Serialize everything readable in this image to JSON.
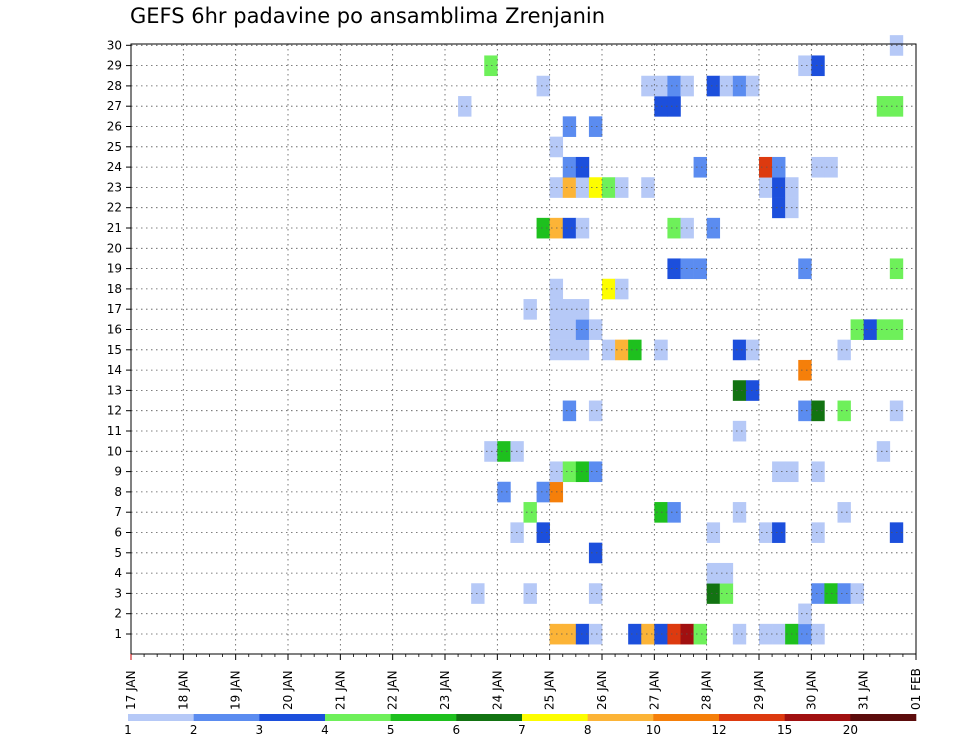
{
  "chart_data": {
    "type": "heatmap",
    "title": "GEFS 6hr padavine po ansamblima Zrenjanin",
    "xlabel": "",
    "ylabel": "",
    "y_ticks": [
      "1",
      "2",
      "3",
      "4",
      "5",
      "6",
      "7",
      "8",
      "9",
      "10",
      "11",
      "12",
      "13",
      "14",
      "15",
      "16",
      "17",
      "18",
      "19",
      "20",
      "21",
      "22",
      "23",
      "24",
      "25",
      "26",
      "27",
      "28",
      "29",
      "30"
    ],
    "x_ticks": [
      "17 JAN",
      "18 JAN",
      "19 JAN",
      "20 JAN",
      "21 JAN",
      "22 JAN",
      "23 JAN",
      "24 JAN",
      "25 JAN",
      "26 JAN",
      "27 JAN",
      "28 JAN",
      "29 JAN",
      "30 JAN",
      "31 JAN",
      "01 FEB"
    ],
    "x_step_hours": 6,
    "grid": true,
    "legend_labels": [
      "1",
      "2",
      "3",
      "4",
      "5",
      "6",
      "7",
      "8",
      "10",
      "12",
      "15",
      "20"
    ],
    "legend_colors": [
      "#b6c9f7",
      "#5b8cf0",
      "#1c4fdc",
      "#6ef05a",
      "#1ec01e",
      "#127312",
      "#fdfd00",
      "#fcb437",
      "#f57f0a",
      "#dd3a0f",
      "#a11010",
      "#5c0c0c"
    ],
    "cells": [
      [
        1,
        32,
        7
      ],
      [
        1,
        33,
        7
      ],
      [
        1,
        34,
        2
      ],
      [
        1,
        35,
        0
      ],
      [
        1,
        38,
        2
      ],
      [
        1,
        39,
        7
      ],
      [
        1,
        40,
        2
      ],
      [
        1,
        41,
        9
      ],
      [
        1,
        42,
        10
      ],
      [
        1,
        43,
        3
      ],
      [
        1,
        46,
        0
      ],
      [
        1,
        48,
        0
      ],
      [
        1,
        49,
        0
      ],
      [
        1,
        50,
        4
      ],
      [
        1,
        51,
        1
      ],
      [
        1,
        52,
        0
      ],
      [
        2,
        51,
        0
      ],
      [
        3,
        26,
        0
      ],
      [
        3,
        30,
        0
      ],
      [
        3,
        35,
        0
      ],
      [
        3,
        44,
        5
      ],
      [
        3,
        45,
        3
      ],
      [
        3,
        52,
        1
      ],
      [
        3,
        53,
        4
      ],
      [
        3,
        54,
        1
      ],
      [
        3,
        55,
        0
      ],
      [
        4,
        44,
        0
      ],
      [
        4,
        45,
        0
      ],
      [
        5,
        35,
        2
      ],
      [
        6,
        29,
        0
      ],
      [
        6,
        31,
        2
      ],
      [
        6,
        44,
        0
      ],
      [
        6,
        48,
        0
      ],
      [
        6,
        49,
        2
      ],
      [
        6,
        52,
        0
      ],
      [
        6,
        58,
        2
      ],
      [
        7,
        30,
        3
      ],
      [
        7,
        40,
        4
      ],
      [
        7,
        41,
        1
      ],
      [
        7,
        46,
        0
      ],
      [
        7,
        54,
        0
      ],
      [
        8,
        28,
        1
      ],
      [
        8,
        31,
        1
      ],
      [
        8,
        32,
        8
      ],
      [
        9,
        32,
        0
      ],
      [
        9,
        33,
        3
      ],
      [
        9,
        34,
        4
      ],
      [
        9,
        35,
        1
      ],
      [
        9,
        49,
        0
      ],
      [
        9,
        50,
        0
      ],
      [
        9,
        52,
        0
      ],
      [
        10,
        27,
        0
      ],
      [
        10,
        28,
        4
      ],
      [
        10,
        29,
        0
      ],
      [
        10,
        57,
        0
      ],
      [
        11,
        46,
        0
      ],
      [
        12,
        33,
        1
      ],
      [
        12,
        35,
        0
      ],
      [
        12,
        51,
        1
      ],
      [
        12,
        52,
        5
      ],
      [
        12,
        54,
        3
      ],
      [
        12,
        58,
        0
      ],
      [
        13,
        46,
        5
      ],
      [
        13,
        47,
        2
      ],
      [
        14,
        51,
        8
      ],
      [
        15,
        32,
        0
      ],
      [
        15,
        33,
        0
      ],
      [
        15,
        34,
        0
      ],
      [
        15,
        36,
        0
      ],
      [
        15,
        37,
        7
      ],
      [
        15,
        38,
        4
      ],
      [
        15,
        40,
        0
      ],
      [
        15,
        46,
        2
      ],
      [
        15,
        47,
        0
      ],
      [
        15,
        54,
        0
      ],
      [
        16,
        32,
        0
      ],
      [
        16,
        33,
        0
      ],
      [
        16,
        34,
        1
      ],
      [
        16,
        35,
        0
      ],
      [
        16,
        55,
        3
      ],
      [
        16,
        56,
        2
      ],
      [
        16,
        57,
        3
      ],
      [
        16,
        58,
        3
      ],
      [
        17,
        30,
        0
      ],
      [
        17,
        32,
        0
      ],
      [
        17,
        33,
        0
      ],
      [
        17,
        34,
        0
      ],
      [
        18,
        32,
        0
      ],
      [
        18,
        36,
        6
      ],
      [
        18,
        37,
        0
      ],
      [
        19,
        41,
        2
      ],
      [
        19,
        42,
        1
      ],
      [
        19,
        43,
        1
      ],
      [
        19,
        51,
        1
      ],
      [
        19,
        58,
        3
      ],
      [
        21,
        31,
        4
      ],
      [
        21,
        32,
        7
      ],
      [
        21,
        33,
        2
      ],
      [
        21,
        34,
        0
      ],
      [
        21,
        41,
        3
      ],
      [
        21,
        42,
        0
      ],
      [
        21,
        44,
        1
      ],
      [
        22,
        49,
        2
      ],
      [
        22,
        50,
        0
      ],
      [
        23,
        32,
        0
      ],
      [
        23,
        33,
        7
      ],
      [
        23,
        34,
        0
      ],
      [
        23,
        35,
        6
      ],
      [
        23,
        36,
        3
      ],
      [
        23,
        37,
        0
      ],
      [
        23,
        39,
        0
      ],
      [
        23,
        48,
        0
      ],
      [
        23,
        49,
        2
      ],
      [
        23,
        50,
        0
      ],
      [
        24,
        33,
        1
      ],
      [
        24,
        34,
        2
      ],
      [
        24,
        43,
        1
      ],
      [
        24,
        48,
        9
      ],
      [
        24,
        49,
        1
      ],
      [
        24,
        52,
        0
      ],
      [
        24,
        53,
        0
      ],
      [
        25,
        32,
        0
      ],
      [
        26,
        33,
        1
      ],
      [
        26,
        35,
        1
      ],
      [
        27,
        25,
        0
      ],
      [
        27,
        40,
        2
      ],
      [
        27,
        41,
        2
      ],
      [
        27,
        57,
        3
      ],
      [
        27,
        58,
        3
      ],
      [
        28,
        31,
        0
      ],
      [
        28,
        39,
        0
      ],
      [
        28,
        40,
        0
      ],
      [
        28,
        41,
        1
      ],
      [
        28,
        42,
        0
      ],
      [
        28,
        44,
        2
      ],
      [
        28,
        45,
        0
      ],
      [
        28,
        46,
        1
      ],
      [
        28,
        47,
        0
      ],
      [
        29,
        27,
        3
      ],
      [
        29,
        51,
        0
      ],
      [
        29,
        52,
        2
      ],
      [
        30,
        58,
        0
      ]
    ]
  }
}
